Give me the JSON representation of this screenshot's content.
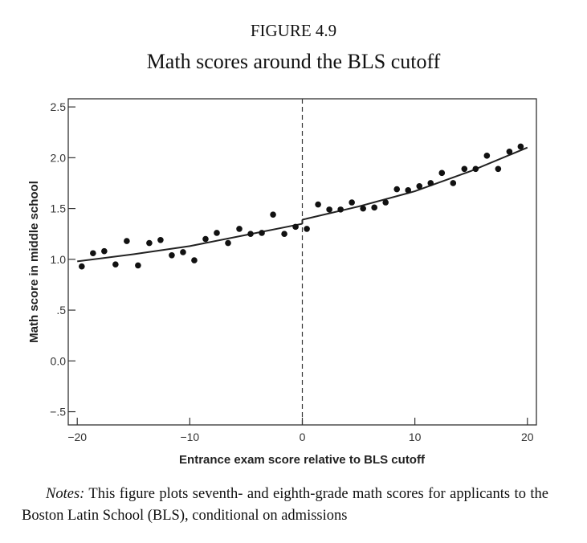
{
  "figure_label": "FIGURE 4.9",
  "figure_title": "Math scores around the BLS cutoff",
  "notes": {
    "lead": "Notes:",
    "text": " This figure plots seventh- and eighth-grade math scores for applicants to the Boston Latin School (BLS), conditional on admissions"
  },
  "chart_data": {
    "type": "scatter",
    "title": "Math scores around the BLS cutoff",
    "xlabel": "Entrance exam score relative to BLS cutoff",
    "ylabel": "Math score in middle school",
    "xlim": [
      -20.8,
      20.8
    ],
    "ylim": [
      -0.63,
      2.58
    ],
    "xticks": [
      -20,
      -10,
      0,
      10,
      20
    ],
    "xtick_labels": [
      "−20",
      "−10",
      "0",
      "10",
      "20"
    ],
    "yticks": [
      2.5,
      2.0,
      1.5,
      1.0,
      0.5,
      0.0,
      -0.5
    ],
    "ytick_labels": [
      "2.5",
      "2.0",
      "1.5",
      "1.0",
      ".5",
      "0.0",
      "−.5"
    ],
    "cutoff_x": 0,
    "grid": false,
    "points": {
      "x": [
        -19.6,
        -18.6,
        -17.6,
        -16.6,
        -15.6,
        -14.6,
        -13.6,
        -12.6,
        -11.6,
        -10.6,
        -9.6,
        -8.6,
        -7.6,
        -6.6,
        -5.6,
        -4.6,
        -3.6,
        -2.6,
        -1.6,
        -0.6,
        0.4,
        1.4,
        2.4,
        3.4,
        4.4,
        5.4,
        6.4,
        7.4,
        8.4,
        9.4,
        10.4,
        11.4,
        12.4,
        13.4,
        14.4,
        15.4,
        16.4,
        17.4,
        18.4,
        19.4
      ],
      "y": [
        0.93,
        1.06,
        1.08,
        0.95,
        1.18,
        0.94,
        1.16,
        1.19,
        1.04,
        1.07,
        0.99,
        1.2,
        1.26,
        1.16,
        1.3,
        1.25,
        1.26,
        1.44,
        1.25,
        1.32,
        1.3,
        1.54,
        1.49,
        1.49,
        1.56,
        1.5,
        1.51,
        1.56,
        1.69,
        1.68,
        1.72,
        1.75,
        1.85,
        1.75,
        1.89,
        1.89,
        2.02,
        1.89,
        2.06,
        2.11
      ]
    },
    "fit_left": {
      "x": [
        -20,
        -15,
        -10,
        -5,
        0
      ],
      "y": [
        0.98,
        1.05,
        1.13,
        1.24,
        1.35
      ]
    },
    "fit_right": {
      "x": [
        0,
        5,
        10,
        15,
        20
      ],
      "y": [
        1.39,
        1.52,
        1.67,
        1.87,
        2.1
      ]
    }
  }
}
